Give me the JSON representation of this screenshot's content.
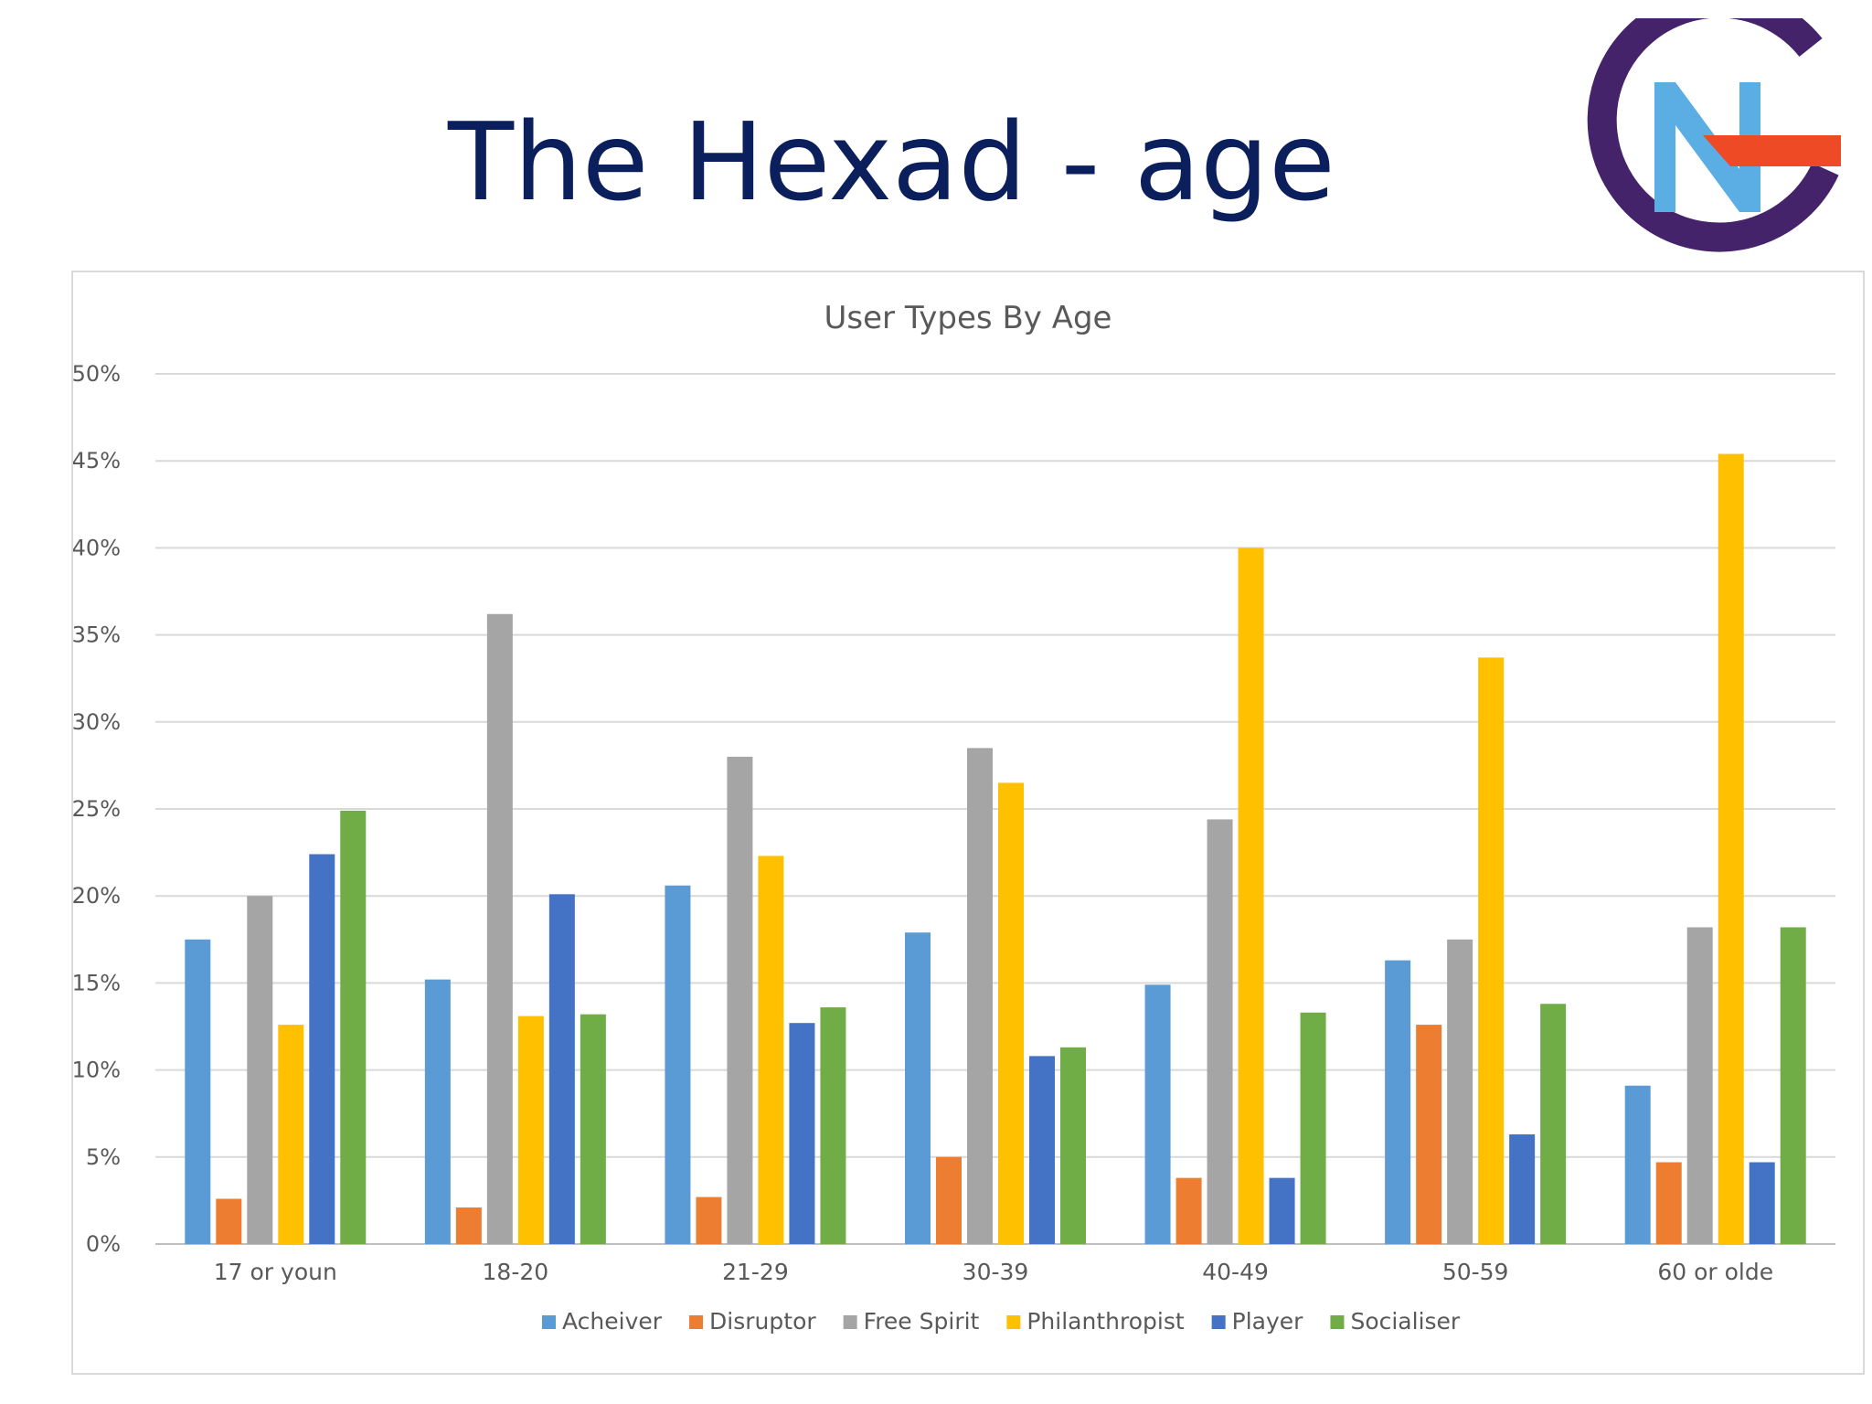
{
  "slide": {
    "title": "The Hexad - age"
  },
  "logo": {
    "icon": "gn-logo-icon",
    "colors": {
      "ring": "#45236b",
      "letter": "#5aaee3",
      "bar": "#ee4a26"
    }
  },
  "chart_data": {
    "type": "bar",
    "title": "User Types By Age",
    "xlabel": "",
    "ylabel": "",
    "ylim": [
      0,
      50
    ],
    "yticks": [
      "0%",
      "5%",
      "10%",
      "15%",
      "20%",
      "25%",
      "30%",
      "35%",
      "40%",
      "45%",
      "50%"
    ],
    "grid": true,
    "legend_position": "bottom",
    "categories": [
      "17 or youn",
      "18-20",
      "21-29",
      "30-39",
      "40-49",
      "50-59",
      "60 or olde"
    ],
    "series": [
      {
        "name": "Acheiver",
        "color": "#5b9bd5",
        "values": [
          17.5,
          15.2,
          20.6,
          17.9,
          14.9,
          16.3,
          9.1
        ]
      },
      {
        "name": "Disruptor",
        "color": "#ed7d31",
        "values": [
          2.6,
          2.1,
          2.7,
          5.0,
          3.8,
          12.6,
          4.7
        ]
      },
      {
        "name": "Free Spirit",
        "color": "#a5a5a5",
        "values": [
          20.0,
          36.2,
          28.0,
          28.5,
          24.4,
          17.5,
          18.2
        ]
      },
      {
        "name": "Philanthropist",
        "color": "#ffc000",
        "values": [
          12.6,
          13.1,
          22.3,
          26.5,
          40.0,
          33.7,
          45.4
        ]
      },
      {
        "name": "Player",
        "color": "#4472c4",
        "values": [
          22.4,
          20.1,
          12.7,
          10.8,
          3.8,
          6.3,
          4.7
        ]
      },
      {
        "name": "Socialiser",
        "color": "#70ad47",
        "values": [
          24.9,
          13.2,
          13.6,
          11.3,
          13.3,
          13.8,
          18.2
        ]
      }
    ]
  }
}
